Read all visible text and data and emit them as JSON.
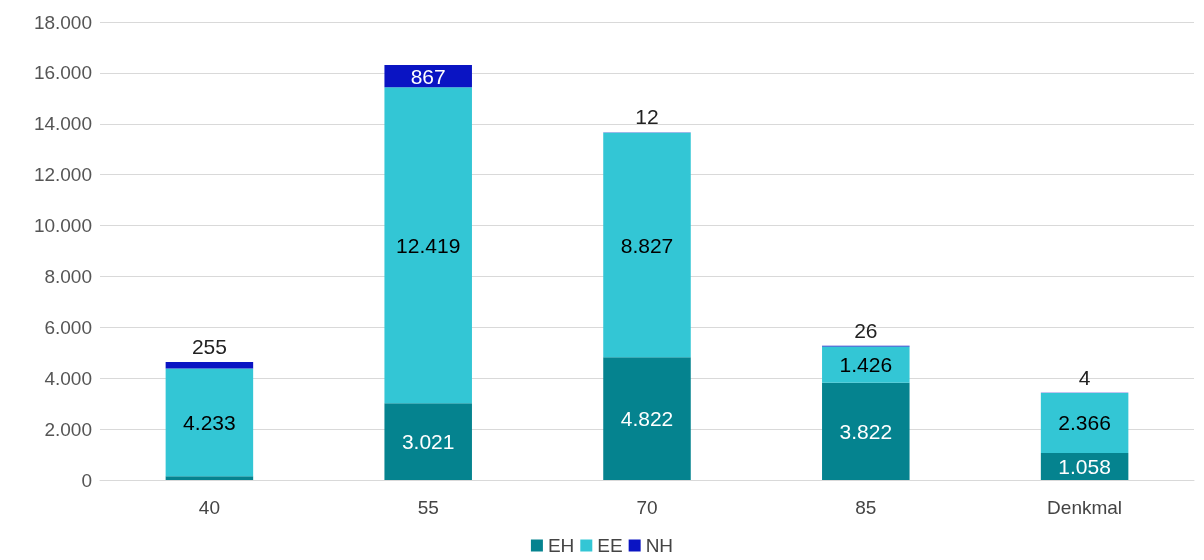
{
  "chart_data": {
    "type": "bar",
    "stacked": true,
    "categories": [
      "40",
      "55",
      "70",
      "85",
      "Denkmal"
    ],
    "series": [
      {
        "name": "EH",
        "color": "#05838f",
        "values": [
          150,
          3021,
          4822,
          3822,
          1058
        ],
        "value_labels": [
          null,
          "3.021",
          "4.822",
          "3.822",
          "1.058"
        ]
      },
      {
        "name": "EE",
        "color": "#33c6d5",
        "values": [
          4233,
          12419,
          8827,
          1426,
          2366
        ],
        "value_labels": [
          "4.233",
          "12.419",
          "8.827",
          "1.426",
          "2.366"
        ]
      },
      {
        "name": "NH",
        "color": "#0a14c3",
        "values": [
          255,
          867,
          12,
          26,
          4
        ],
        "value_labels": [
          "255",
          "867",
          "12",
          "26",
          "4"
        ]
      }
    ],
    "ylim": [
      0,
      18000
    ],
    "yticks": [
      {
        "value": 0,
        "label": "0"
      },
      {
        "value": 2000,
        "label": "2.000"
      },
      {
        "value": 4000,
        "label": "4.000"
      },
      {
        "value": 6000,
        "label": "6.000"
      },
      {
        "value": 8000,
        "label": "8.000"
      },
      {
        "value": 10000,
        "label": "10.000"
      },
      {
        "value": 12000,
        "label": "12.000"
      },
      {
        "value": 14000,
        "label": "14.000"
      },
      {
        "value": 16000,
        "label": "16.000"
      },
      {
        "value": 18000,
        "label": "18.000"
      }
    ],
    "grid": "y",
    "legend": "bottom"
  }
}
